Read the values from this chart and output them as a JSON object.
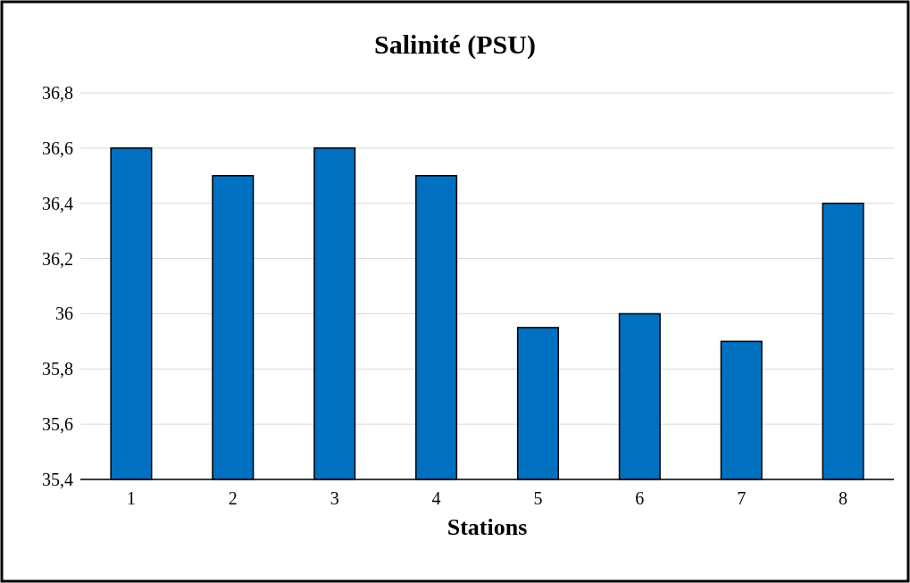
{
  "chart_data": {
    "type": "bar",
    "title": "Salinité (PSU)",
    "xlabel": "Stations",
    "categories": [
      "1",
      "2",
      "3",
      "4",
      "5",
      "6",
      "7",
      "8"
    ],
    "values": [
      36.6,
      36.5,
      36.6,
      36.5,
      35.95,
      36.0,
      35.9,
      36.4
    ],
    "color": "#0070c0",
    "ylim": [
      35.4,
      36.8
    ],
    "yticks": [
      {
        "value": 35.4,
        "label": "35,4"
      },
      {
        "value": 35.6,
        "label": "35,6"
      },
      {
        "value": 35.8,
        "label": "35,8"
      },
      {
        "value": 36,
        "label": "36"
      },
      {
        "value": 36.2,
        "label": "36,2"
      },
      {
        "value": 36.4,
        "label": "36,4"
      },
      {
        "value": 36.6,
        "label": "36,6"
      },
      {
        "value": 36.8,
        "label": "36,8"
      }
    ],
    "grid": "y"
  }
}
